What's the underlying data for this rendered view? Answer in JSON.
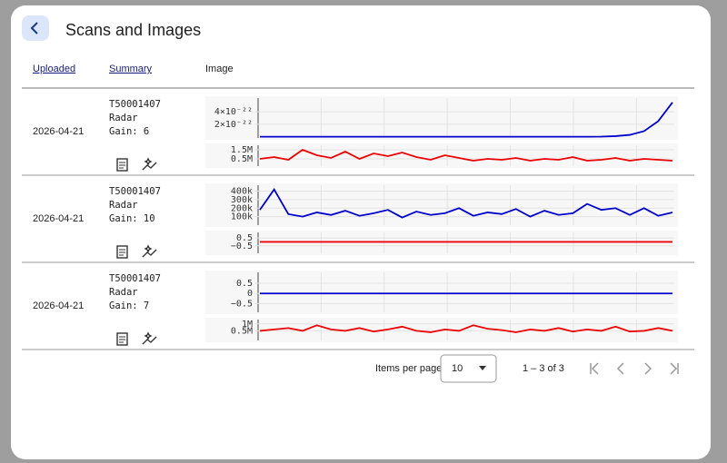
{
  "dialog": {
    "title": "Scans and Images"
  },
  "table": {
    "headers": [
      "Uploaded",
      "Summary",
      "Image"
    ],
    "rows": [
      {
        "uploaded": "2026-04-21",
        "summary": [
          "T50001407",
          "Radar",
          "Gain: 6"
        ],
        "charts": [
          {
            "type": "line",
            "color": "#0000cc",
            "ylim": [
              -2e-23,
              6.2e-22
            ],
            "yticks": [
              {
                "value": 4e-22,
                "label": "4×10⁻²²"
              },
              {
                "value": 2e-22,
                "label": "2×10⁻²²"
              }
            ],
            "values": [
              0,
              0,
              0,
              0,
              0,
              0,
              0,
              0,
              0,
              0,
              0,
              0,
              0,
              0,
              0,
              0,
              0,
              0,
              0,
              0,
              0,
              0,
              0,
              0,
              2e-24,
              1e-23,
              3e-23,
              9e-23,
              2.5e-22,
              5.5e-22
            ]
          },
          {
            "type": "line",
            "color": "#ee0000",
            "ylim": [
              -300000,
              2000000
            ],
            "yticks": [
              {
                "value": 1500000,
                "label": "1.5M"
              },
              {
                "value": 500000,
                "label": "0.5M"
              }
            ],
            "values": [
              500000,
              700000,
              400000,
              1500000,
              900000,
              600000,
              1300000,
              500000,
              1100000,
              800000,
              1200000,
              700000,
              400000,
              900000,
              600000,
              300000,
              500000,
              400000,
              600000,
              300000,
              500000,
              400000,
              700000,
              300000,
              400000,
              600000,
              300000,
              500000,
              400000,
              300000
            ]
          }
        ]
      },
      {
        "uploaded": "2026-04-21",
        "summary": [
          "T50001407",
          "Radar",
          "Gain: 10"
        ],
        "charts": [
          {
            "type": "line",
            "color": "#0000cc",
            "ylim": [
              0,
              470000
            ],
            "yticks": [
              {
                "value": 400000,
                "label": "400k"
              },
              {
                "value": 300000,
                "label": "300k"
              },
              {
                "value": 200000,
                "label": "200k"
              },
              {
                "value": 100000,
                "label": "100k"
              }
            ],
            "values": [
              180000,
              420000,
              130000,
              100000,
              150000,
              120000,
              170000,
              110000,
              140000,
              180000,
              90000,
              160000,
              120000,
              140000,
              200000,
              110000,
              150000,
              130000,
              190000,
              100000,
              170000,
              120000,
              140000,
              250000,
              180000,
              200000,
              120000,
              200000,
              110000,
              150000
            ]
          },
          {
            "type": "line",
            "color": "#ee0000",
            "ylim": [
              -1.44,
              1.2
            ],
            "yticks": [
              0.5,
              {
                "value": -0.5,
                "label": "−0.5"
              }
            ],
            "values": [
              0,
              0,
              0,
              0,
              0,
              0,
              0,
              0,
              0,
              0,
              0,
              0,
              0,
              0,
              0,
              0,
              0,
              0,
              0,
              0,
              0,
              0,
              0,
              0,
              0,
              0,
              0,
              0,
              0,
              0
            ]
          }
        ]
      },
      {
        "uploaded": "2026-04-21",
        "summary": [
          "T50001407",
          "Radar",
          "Gain: 7"
        ],
        "charts": [
          {
            "type": "line",
            "color": "#0000cc",
            "ylim": [
              -0.93,
              1.04
            ],
            "yticks": [
              0.5,
              0,
              {
                "value": -0.5,
                "label": "−0.5"
              }
            ],
            "values": [
              0,
              0,
              0,
              0,
              0,
              0,
              0,
              0,
              0,
              0,
              0,
              0,
              0,
              0,
              0,
              0,
              0,
              0,
              0,
              0,
              0,
              0,
              0,
              0,
              0,
              0,
              0,
              0,
              0,
              0
            ]
          },
          {
            "type": "line",
            "color": "#ee0000",
            "ylim": [
              -190000,
              1310000
            ],
            "yticks": [
              {
                "value": 1000000,
                "label": "1M"
              },
              {
                "value": 500000,
                "label": "0.5M"
              }
            ],
            "values": [
              500000,
              600000,
              700000,
              500000,
              900000,
              600000,
              500000,
              700000,
              450000,
              600000,
              800000,
              500000,
              400000,
              600000,
              500000,
              900000,
              650000,
              550000,
              400000,
              600000,
              500000,
              700000,
              450000,
              600000,
              500000,
              800000,
              450000,
              500000,
              700000,
              500000
            ]
          }
        ]
      }
    ]
  },
  "paginator": {
    "items_per_page_label": "Items per page:",
    "page_size": 10,
    "range": "1 – 3 of 3"
  }
}
